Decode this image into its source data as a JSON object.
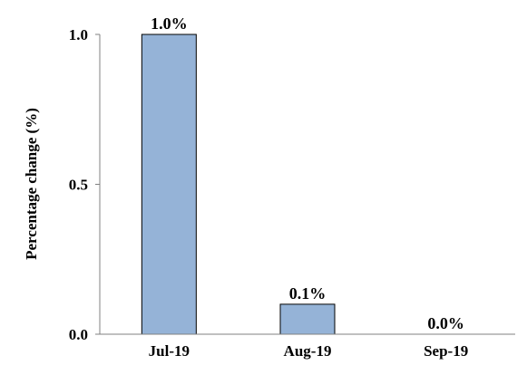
{
  "chart_data": {
    "type": "bar",
    "title": "",
    "xlabel": "",
    "ylabel": "Percentage change (%)",
    "categories": [
      "Jul-19",
      "Aug-19",
      "Sep-19"
    ],
    "values": [
      1.0,
      0.1,
      0.0
    ],
    "data_labels": [
      "1.0%",
      "0.1%",
      "0.0%"
    ],
    "ylim": [
      0,
      1
    ],
    "yticks": [
      0.0,
      0.5,
      1.0
    ],
    "ytick_labels": [
      "0.0",
      "0.5",
      "1.0"
    ],
    "grid": false,
    "legend": "none",
    "colors": {
      "bar_fill": "#95b3d7",
      "bar_stroke": "#000000",
      "axis": "#808080",
      "text": "#000000"
    }
  }
}
